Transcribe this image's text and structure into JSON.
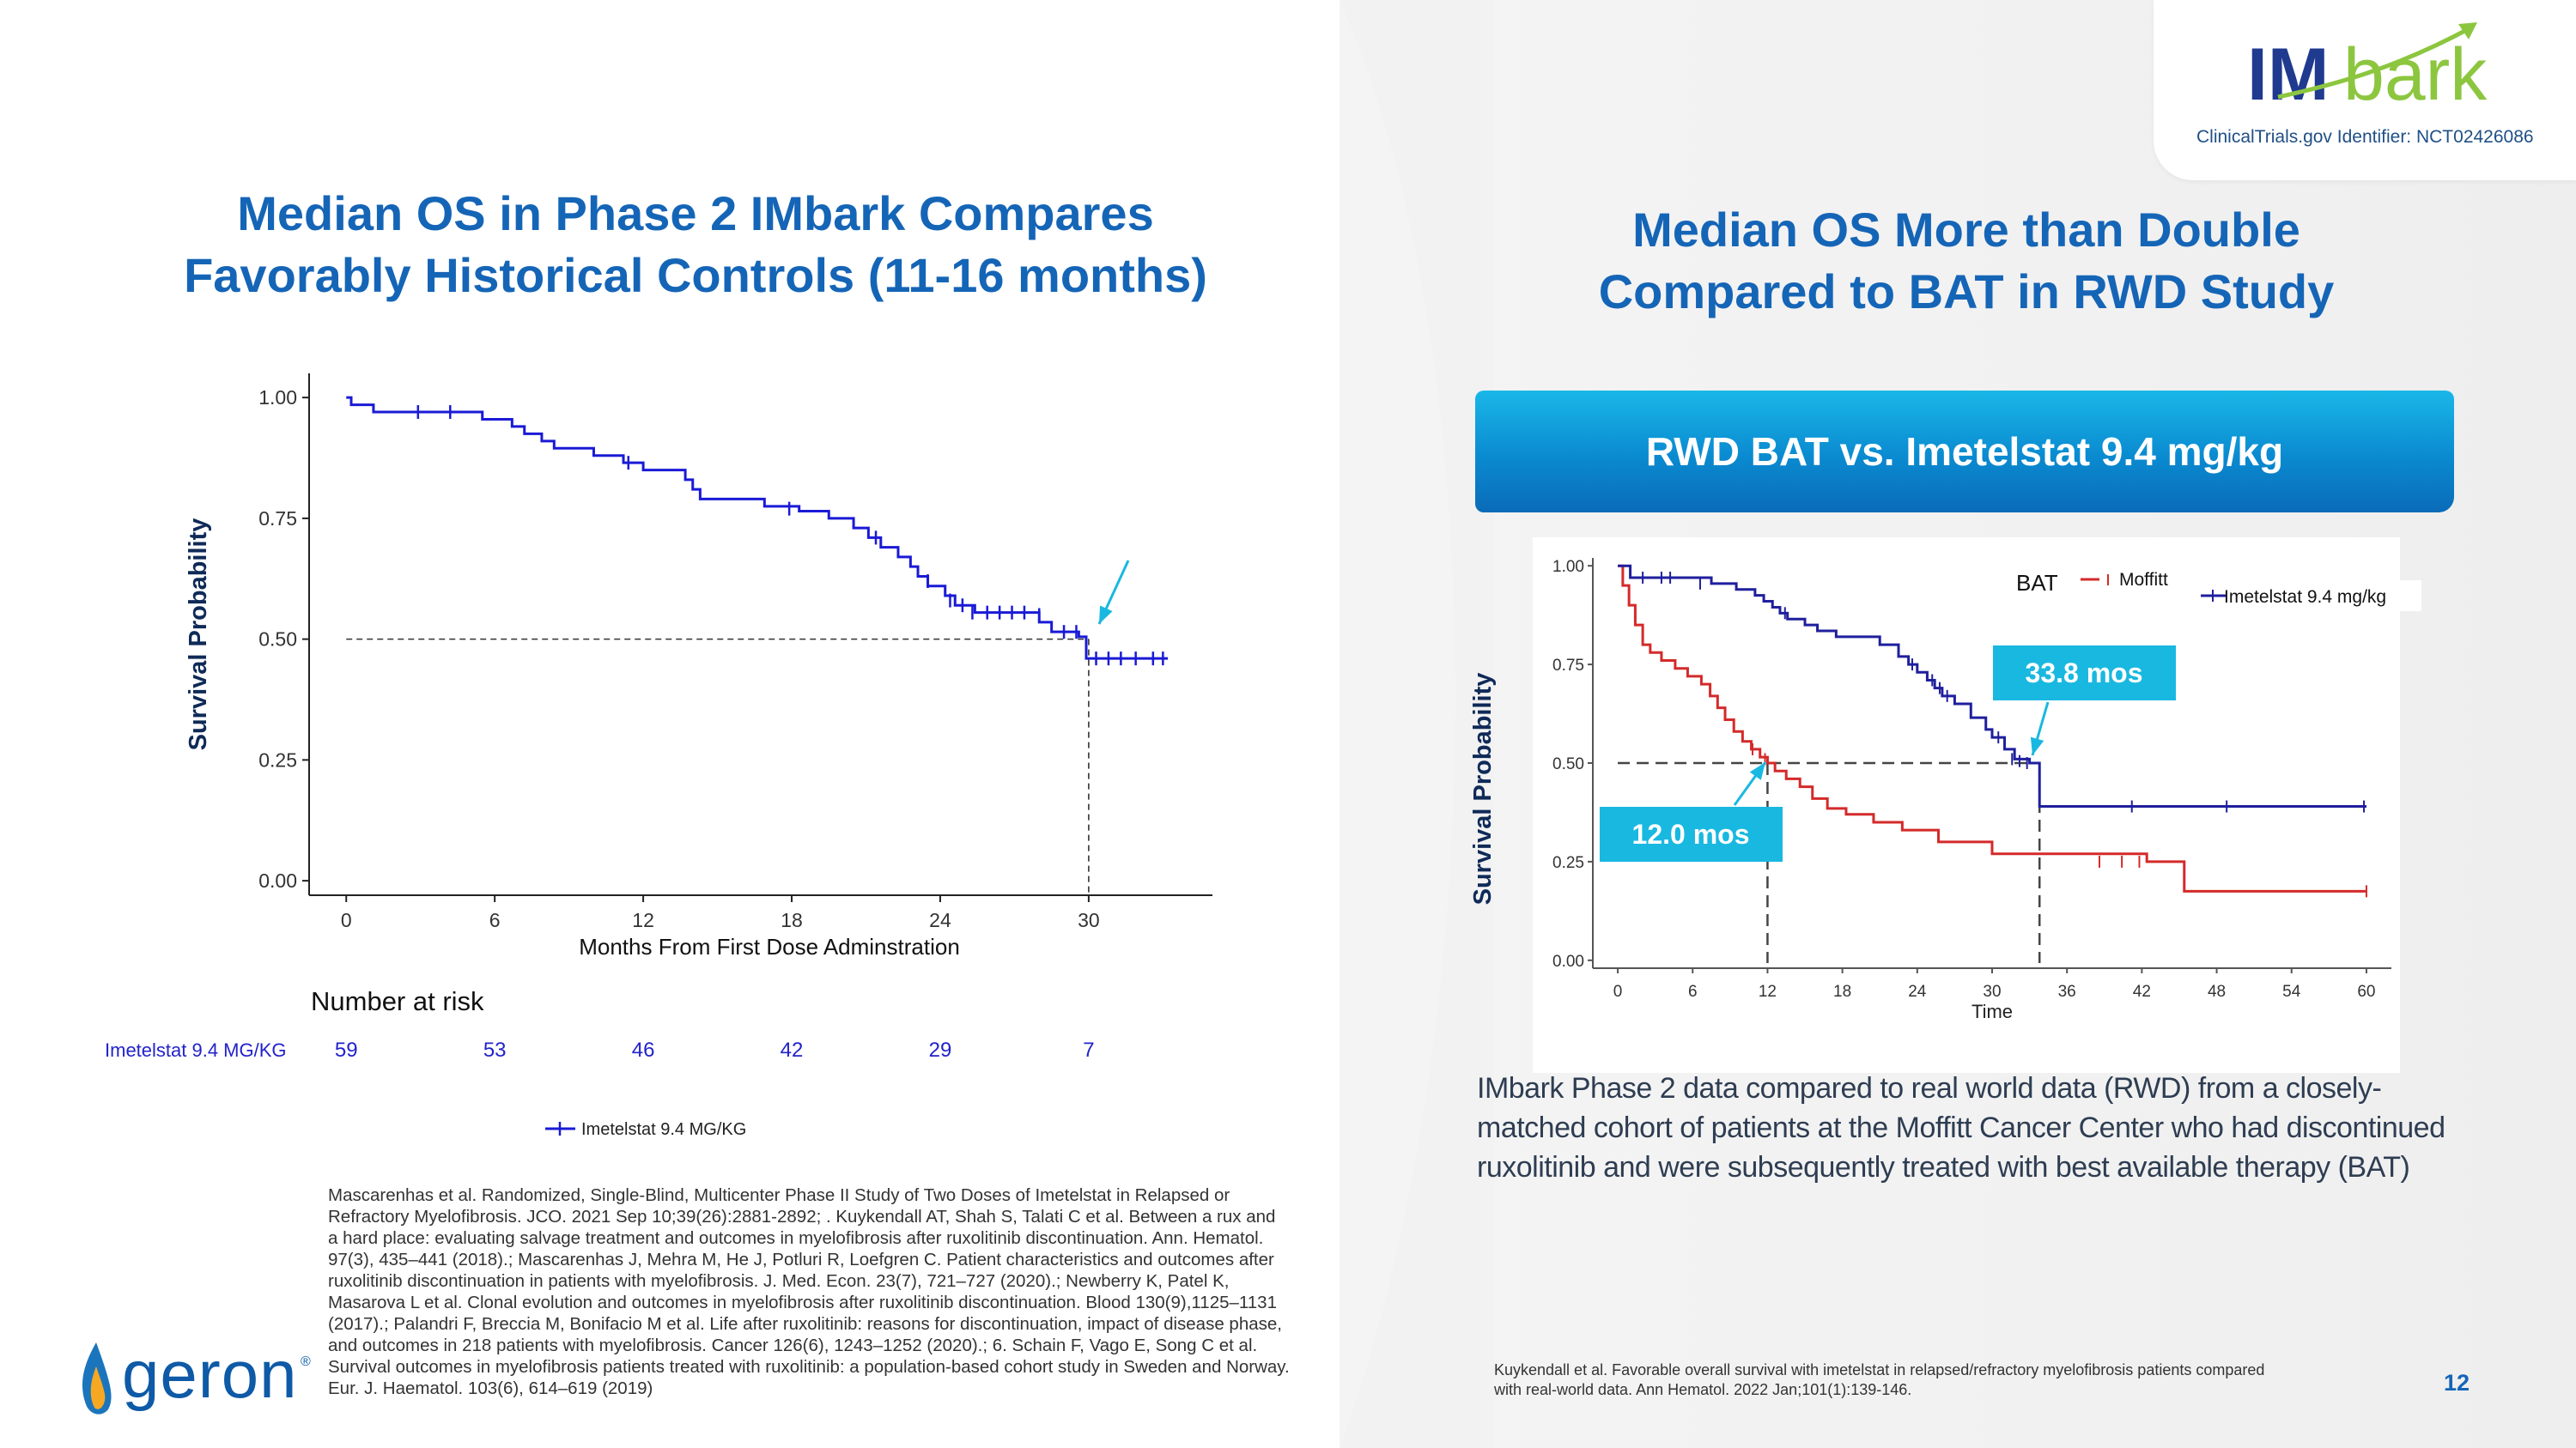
{
  "brand": {
    "logo_im": "IM",
    "logo_bark": "bark",
    "clinical_trials_id": "ClinicalTrials.gov Identifier: NCT02426086",
    "company": "geron",
    "company_mark": "®",
    "colors": {
      "title_blue": "#1565b7",
      "imetelstat_line": "#1a1ad6",
      "bat_line": "#d42a2a",
      "callout_teal": "#19b8e0"
    }
  },
  "left": {
    "title_line1": "Median OS in Phase 2 IMbark Compares",
    "title_line2": "Favorably Historical Controls (11-16 months)"
  },
  "right": {
    "title_line1": "Median OS More than Double",
    "title_line2": "Compared to BAT in RWD Study",
    "banner": "RWD BAT vs. Imetelstat 9.4 mg/kg",
    "description": "IMbark Phase 2 data compared to real world data (RWD) from a closely-matched cohort of patients at the Moffitt Cancer Center who had discontinued ruxolitinib and were subsequently treated with best available therapy (BAT)"
  },
  "chart_data": [
    {
      "type": "line",
      "xlabel": "Months From First Dose Adminstration",
      "ylabel": "Survival Probability",
      "x_ticks": [
        0,
        6,
        12,
        18,
        24,
        30
      ],
      "y_ticks": [
        "0.00",
        "0.25",
        "0.50",
        "0.75",
        "1.00"
      ],
      "xlim": [
        -1.5,
        35
      ],
      "ylim": [
        -0.03,
        1.05
      ],
      "median_x": 30,
      "risk_table_title": "Number at risk",
      "risk_table_label": "Imetelstat 9.4 MG/KG",
      "risk_times": [
        0,
        6,
        12,
        18,
        24,
        30
      ],
      "risk_values": [
        "59",
        "53",
        "46",
        "42",
        "29",
        "7"
      ],
      "legend": "Imetelstat 9.4 MG/KG",
      "series": [
        {
          "name": "Imetelstat 9.4 MG/KG",
          "color": "#1a1ad6",
          "steps": [
            [
              0,
              1.0
            ],
            [
              0.2,
              0.985
            ],
            [
              1.1,
              0.97
            ],
            [
              5.5,
              0.955
            ],
            [
              6.7,
              0.94
            ],
            [
              7.2,
              0.925
            ],
            [
              7.9,
              0.91
            ],
            [
              8.4,
              0.895
            ],
            [
              10.0,
              0.88
            ],
            [
              11.2,
              0.865
            ],
            [
              12.0,
              0.85
            ],
            [
              13.7,
              0.83
            ],
            [
              14.0,
              0.81
            ],
            [
              14.3,
              0.79
            ],
            [
              16.9,
              0.775
            ],
            [
              18.3,
              0.765
            ],
            [
              19.5,
              0.75
            ],
            [
              20.5,
              0.73
            ],
            [
              21.1,
              0.71
            ],
            [
              21.6,
              0.69
            ],
            [
              22.3,
              0.67
            ],
            [
              22.8,
              0.65
            ],
            [
              23.1,
              0.63
            ],
            [
              23.5,
              0.61
            ],
            [
              24.2,
              0.59
            ],
            [
              24.6,
              0.57
            ],
            [
              25.4,
              0.555
            ],
            [
              28.0,
              0.535
            ],
            [
              28.5,
              0.515
            ],
            [
              29.6,
              0.505
            ],
            [
              29.9,
              0.46
            ],
            [
              33.2,
              0.46
            ]
          ],
          "censored": [
            [
              2.9,
              0.97
            ],
            [
              4.2,
              0.97
            ],
            [
              11.4,
              0.865
            ],
            [
              17.9,
              0.77
            ],
            [
              21.4,
              0.71
            ],
            [
              23.5,
              0.62
            ],
            [
              24.4,
              0.58
            ],
            [
              24.9,
              0.57
            ],
            [
              25.3,
              0.555
            ],
            [
              25.9,
              0.555
            ],
            [
              26.4,
              0.555
            ],
            [
              26.9,
              0.555
            ],
            [
              27.4,
              0.555
            ],
            [
              28.0,
              0.55
            ],
            [
              29.0,
              0.515
            ],
            [
              29.5,
              0.515
            ],
            [
              30.3,
              0.46
            ],
            [
              30.8,
              0.46
            ],
            [
              31.3,
              0.46
            ],
            [
              31.9,
              0.46
            ],
            [
              32.6,
              0.46
            ],
            [
              33.0,
              0.46
            ]
          ]
        }
      ]
    },
    {
      "type": "line",
      "xlabel": "Time",
      "ylabel": "Survival Probability",
      "x_ticks": [
        0,
        6,
        12,
        18,
        24,
        30,
        36,
        42,
        48,
        54,
        60
      ],
      "y_ticks": [
        "0.00",
        "0.25",
        "0.50",
        "0.75",
        "1.00"
      ],
      "xlim": [
        -2,
        62
      ],
      "ylim": [
        -0.02,
        1.02
      ],
      "legend_title": "BAT",
      "legend_moffitt": "Moffitt",
      "legend_imetelstat": "Imetelstat 9.4 mg/kg",
      "medians": [
        {
          "series": "Moffitt",
          "x": 12.0,
          "label": "12.0 mos"
        },
        {
          "series": "Imetelstat 9.4 mg/kg",
          "x": 33.8,
          "label": "33.8 mos"
        }
      ],
      "series": [
        {
          "name": "Moffitt",
          "color": "#d42a2a",
          "steps": [
            [
              0,
              1.0
            ],
            [
              0.4,
              0.95
            ],
            [
              0.9,
              0.9
            ],
            [
              1.4,
              0.85
            ],
            [
              2.0,
              0.8
            ],
            [
              2.6,
              0.78
            ],
            [
              3.5,
              0.76
            ],
            [
              4.6,
              0.74
            ],
            [
              5.6,
              0.72
            ],
            [
              6.7,
              0.7
            ],
            [
              7.4,
              0.67
            ],
            [
              8.0,
              0.64
            ],
            [
              8.6,
              0.61
            ],
            [
              9.3,
              0.58
            ],
            [
              10.0,
              0.555
            ],
            [
              10.7,
              0.535
            ],
            [
              11.4,
              0.515
            ],
            [
              12.0,
              0.5
            ],
            [
              12.6,
              0.48
            ],
            [
              13.5,
              0.46
            ],
            [
              14.6,
              0.44
            ],
            [
              15.6,
              0.41
            ],
            [
              16.8,
              0.385
            ],
            [
              18.3,
              0.37
            ],
            [
              20.5,
              0.35
            ],
            [
              22.8,
              0.33
            ],
            [
              25.7,
              0.3
            ],
            [
              30.0,
              0.27
            ],
            [
              42.4,
              0.25
            ],
            [
              45.4,
              0.175
            ],
            [
              60,
              0.175
            ]
          ],
          "censored": [
            [
              10.8,
              0.535
            ],
            [
              11.8,
              0.51
            ],
            [
              38.6,
              0.25
            ],
            [
              40.4,
              0.25
            ],
            [
              41.8,
              0.25
            ],
            [
              60,
              0.175
            ]
          ]
        },
        {
          "name": "Imetelstat 9.4 mg/kg",
          "color": "#1f1f9e",
          "steps": [
            [
              0,
              1.0
            ],
            [
              1.0,
              0.97
            ],
            [
              7.5,
              0.955
            ],
            [
              9.5,
              0.94
            ],
            [
              11.0,
              0.925
            ],
            [
              11.7,
              0.91
            ],
            [
              12.4,
              0.895
            ],
            [
              13.0,
              0.88
            ],
            [
              13.6,
              0.865
            ],
            [
              15.0,
              0.85
            ],
            [
              16.0,
              0.835
            ],
            [
              17.5,
              0.82
            ],
            [
              21.0,
              0.8
            ],
            [
              22.5,
              0.77
            ],
            [
              23.3,
              0.75
            ],
            [
              24.0,
              0.73
            ],
            [
              24.8,
              0.71
            ],
            [
              25.4,
              0.69
            ],
            [
              26.0,
              0.67
            ],
            [
              27.0,
              0.65
            ],
            [
              28.3,
              0.615
            ],
            [
              29.5,
              0.585
            ],
            [
              30.0,
              0.565
            ],
            [
              31.0,
              0.535
            ],
            [
              31.8,
              0.51
            ],
            [
              33.0,
              0.5
            ],
            [
              33.8,
              0.39
            ],
            [
              60,
              0.39
            ]
          ],
          "censored": [
            [
              2.0,
              0.97
            ],
            [
              3.5,
              0.97
            ],
            [
              4.2,
              0.97
            ],
            [
              6.6,
              0.955
            ],
            [
              13.4,
              0.88
            ],
            [
              23.6,
              0.75
            ],
            [
              25.2,
              0.71
            ],
            [
              25.8,
              0.69
            ],
            [
              26.4,
              0.67
            ],
            [
              30.5,
              0.565
            ],
            [
              31.6,
              0.51
            ],
            [
              32.2,
              0.505
            ],
            [
              32.8,
              0.5
            ],
            [
              41.2,
              0.39
            ],
            [
              48.8,
              0.39
            ],
            [
              59.8,
              0.39
            ]
          ]
        }
      ]
    }
  ],
  "references": {
    "left": "Mascarenhas et al. Randomized, Single-Blind, Multicenter Phase II Study of Two Doses of Imetelstat in Relapsed or Refractory Myelofibrosis. JCO. 2021 Sep 10;39(26):2881-2892; . Kuykendall AT, Shah S, Talati C et al. Between a rux and a hard place: evaluating salvage treatment and outcomes in myelofibrosis after ruxolitinib discontinuation. Ann. Hematol. 97(3), 435–441 (2018).; Mascarenhas J, Mehra M, He J, Potluri R, Loefgren C. Patient characteristics and outcomes after ruxolitinib discontinuation in patients with myelofibrosis. J. Med. Econ. 23(7), 721–727 (2020).; Newberry K, Patel K, Masarova L et al. Clonal evolution and outcomes in myelofibrosis after ruxolitinib discontinuation. Blood 130(9),1125–1131 (2017).; Palandri F, Breccia M, Bonifacio M et al. Life after ruxolitinib: reasons for discontinuation, impact of disease phase, and outcomes in 218 patients with myelofibrosis. Cancer 126(6), 1243–1252 (2020).; 6. Schain F, Vago E, Song C et al. Survival outcomes in myelofibrosis patients treated with ruxolitinib: a population-based cohort study in Sweden and Norway. Eur. J. Haematol. 103(6), 614–619 (2019)",
    "right": "Kuykendall et al. Favorable overall survival with imetelstat in relapsed/refractory myelofibrosis patients compared with real‑world data. Ann Hematol. 2022 Jan;101(1):139-146."
  },
  "page_number": "12"
}
